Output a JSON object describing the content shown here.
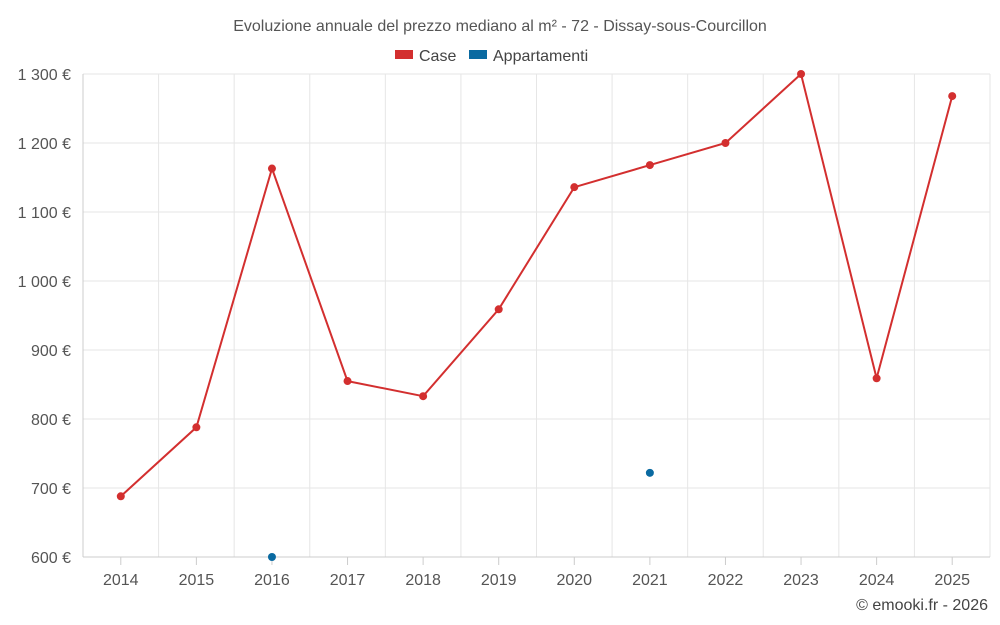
{
  "chart_data": {
    "type": "line",
    "title": "Evoluzione annuale del prezzo mediano al m² - 72 - Dissay-sous-Courcillon",
    "categories": [
      "2014",
      "2015",
      "2016",
      "2017",
      "2018",
      "2019",
      "2020",
      "2021",
      "2022",
      "2023",
      "2024",
      "2025"
    ],
    "ylim": [
      600,
      1300
    ],
    "yticks": [
      600,
      700,
      800,
      900,
      1000,
      1100,
      1200,
      1300
    ],
    "ytick_labels": [
      "600 €",
      "700 €",
      "800 €",
      "900 €",
      "1 000 €",
      "1 100 €",
      "1 200 €",
      "1 300 €"
    ],
    "grid": true,
    "legend_position": "top-center",
    "series": [
      {
        "name": "Case",
        "color": "#d32f2f",
        "values": [
          688,
          788,
          1163,
          855,
          833,
          959,
          1136,
          1168,
          1200,
          1300,
          859,
          1268
        ]
      },
      {
        "name": "Appartamenti",
        "color": "#0a6aa1",
        "values": [
          null,
          null,
          600,
          null,
          null,
          null,
          null,
          722,
          null,
          null,
          null,
          null
        ]
      }
    ],
    "credit": "© emooki.fr - 2026"
  }
}
